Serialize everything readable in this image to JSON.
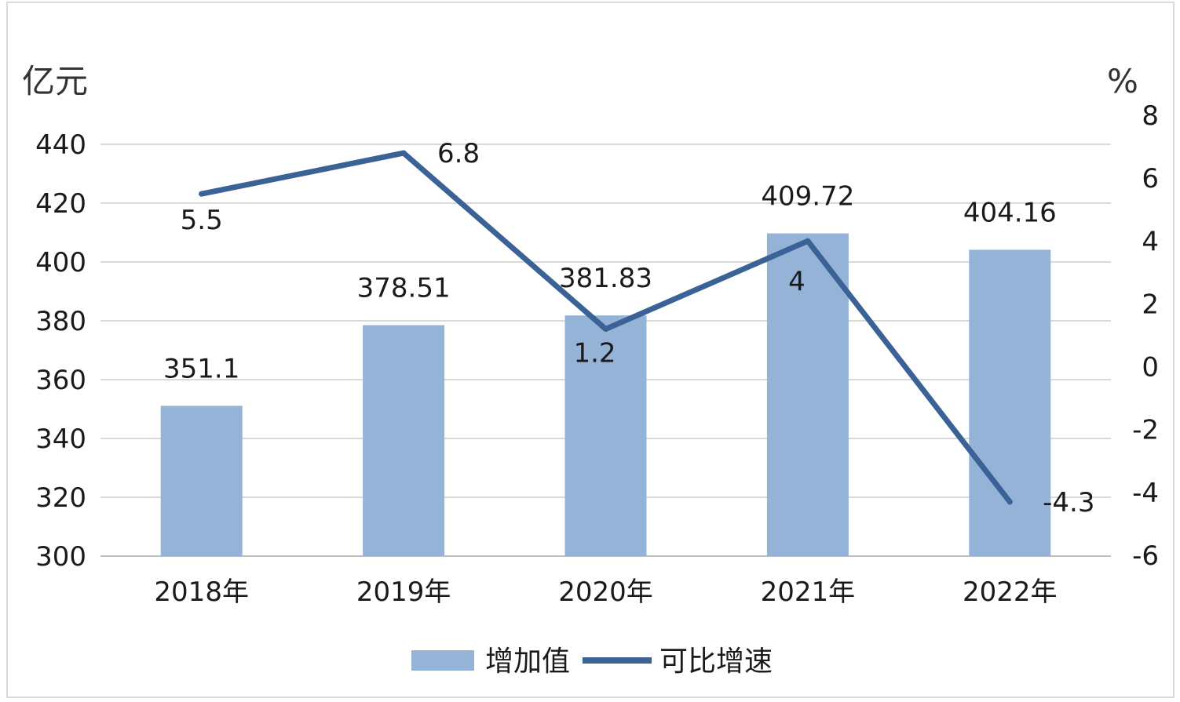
{
  "chart_data": {
    "type": "bar",
    "categories": [
      "2018年",
      "2019年",
      "2020年",
      "2021年",
      "2022年"
    ],
    "series": [
      {
        "name": "增加值",
        "type": "bar",
        "axis": "left",
        "values": [
          351.1,
          378.51,
          381.83,
          409.72,
          404.16
        ],
        "color": "#95b3d7"
      },
      {
        "name": "可比增速",
        "type": "line",
        "axis": "right",
        "values": [
          5.5,
          6.8,
          1.2,
          4,
          -4.3
        ],
        "color": "#3b6296"
      }
    ],
    "y_left": {
      "unit": "亿元",
      "range": [
        300,
        440
      ],
      "ticks": [
        300,
        320,
        340,
        360,
        380,
        400,
        420,
        440
      ]
    },
    "y_right": {
      "unit": "%",
      "range": [
        -6,
        8
      ],
      "ticks": [
        -6,
        -4,
        -2,
        0,
        2,
        4,
        6,
        8
      ]
    },
    "bar_labels": [
      "351.1",
      "378.51",
      "381.83",
      "409.72",
      "404.16"
    ],
    "line_labels": [
      "5.5",
      "6.8",
      "1.2",
      "4",
      "-4.3"
    ],
    "grid": true,
    "legend_position": "bottom"
  }
}
